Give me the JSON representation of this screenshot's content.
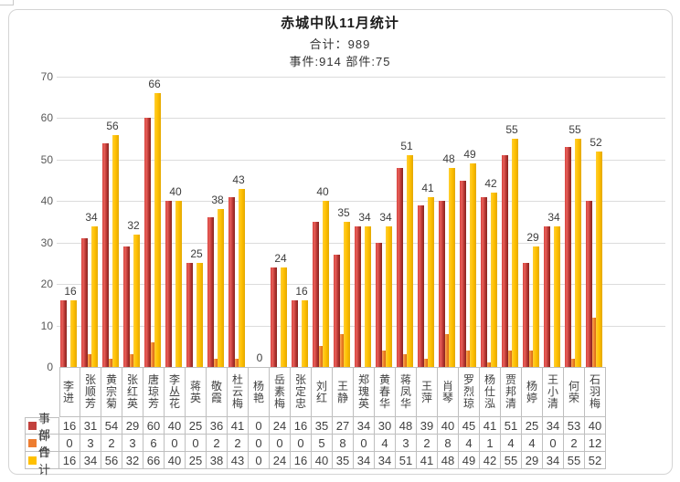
{
  "window": {
    "background": "#ffffff",
    "frame_border": "#d4d4d4"
  },
  "header": {
    "title": "赤城中队11月统计",
    "subtitle_total": "合计：989",
    "subtitle_detail": "事件:914 部件:75"
  },
  "chart_data": {
    "type": "bar",
    "title": "赤城中队11月统计",
    "subtitle_lines": [
      "合计：989",
      "事件:914 部件:75"
    ],
    "categories": [
      "李进",
      "张顺芳",
      "黄宗菊",
      "张红英",
      "唐琼芳",
      "李丛花",
      "蒋英",
      "敬霞",
      "杜云梅",
      "杨艳",
      "岳素梅",
      "张定忠",
      "刘红",
      "王静",
      "郑瑰英",
      "黄春华",
      "蒋凤华",
      "王萍",
      "肖琴",
      "罗烈琼",
      "杨仕泓",
      "贾邦清",
      "杨婷",
      "王小清",
      "何荣",
      "石羽梅"
    ],
    "series": [
      {
        "name": "事件",
        "color": "#c2413d",
        "values": [
          16,
          31,
          54,
          29,
          60,
          40,
          25,
          36,
          41,
          0,
          24,
          16,
          35,
          27,
          34,
          30,
          48,
          39,
          40,
          45,
          41,
          51,
          25,
          34,
          53,
          40
        ]
      },
      {
        "name": "部件",
        "color": "#ed7d31",
        "values": [
          0,
          3,
          2,
          3,
          6,
          0,
          0,
          2,
          2,
          0,
          0,
          0,
          5,
          8,
          0,
          4,
          3,
          2,
          8,
          4,
          1,
          4,
          4,
          0,
          2,
          12
        ]
      },
      {
        "name": "合计",
        "color": "#ffc000",
        "values": [
          16,
          34,
          56,
          32,
          66,
          40,
          25,
          38,
          43,
          0,
          24,
          16,
          40,
          35,
          34,
          34,
          51,
          41,
          48,
          49,
          42,
          55,
          29,
          34,
          55,
          52
        ]
      }
    ],
    "ylim": [
      0,
      70
    ],
    "ytick_step": 10,
    "grid": true,
    "legend_position": "table-left",
    "data_labels_series": "合计",
    "data_table_shown": true
  }
}
